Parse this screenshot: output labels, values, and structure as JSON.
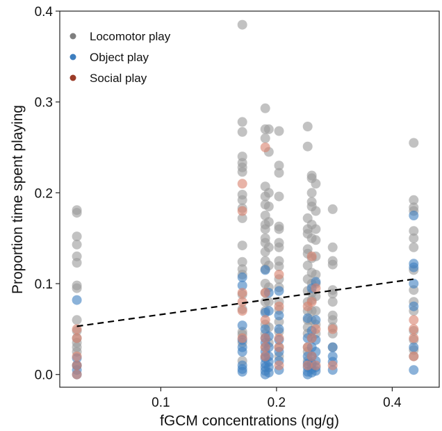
{
  "chart_data": {
    "type": "scatter",
    "title": "",
    "xlabel": "fGCM concentrations (ng/g)",
    "ylabel": "Proportion time spent playing",
    "x_scale": "log",
    "xlim": [
      0.0546,
      0.53
    ],
    "ylim": [
      -0.014,
      0.4
    ],
    "x_ticks": [
      {
        "value": 0.1,
        "label": "0.1"
      },
      {
        "value": 0.2,
        "label": "0.2"
      },
      {
        "value": 0.4,
        "label": "0.4"
      }
    ],
    "y_ticks": [
      {
        "value": 0.0,
        "label": "0.0"
      },
      {
        "value": 0.1,
        "label": "0.1"
      },
      {
        "value": 0.2,
        "label": "0.2"
      },
      {
        "value": 0.3,
        "label": "0.3"
      },
      {
        "value": 0.4,
        "label": "0.4"
      }
    ],
    "grid": false,
    "legend": {
      "placement": "top-left",
      "entries": [
        {
          "name": "Locomotor play",
          "color": "#7f7f7f"
        },
        {
          "name": "Object play",
          "color": "#3d7ebf"
        },
        {
          "name": "Social play",
          "color": "#9b3b28"
        }
      ]
    },
    "series": [
      {
        "name": "Locomotor play",
        "color": "#9a9a9a",
        "points": [
          [
            0.0605,
            0.181
          ],
          [
            0.0605,
            0.178
          ],
          [
            0.0605,
            0.152
          ],
          [
            0.0605,
            0.143
          ],
          [
            0.0605,
            0.13
          ],
          [
            0.0605,
            0.123
          ],
          [
            0.0605,
            0.098
          ],
          [
            0.0605,
            0.095
          ],
          [
            0.0605,
            0.06
          ],
          [
            0.0605,
            0.048
          ],
          [
            0.0605,
            0.04
          ],
          [
            0.0605,
            0.035
          ],
          [
            0.0605,
            0.03
          ],
          [
            0.0605,
            0.025
          ],
          [
            0.0605,
            0.01
          ],
          [
            0.163,
            0.385
          ],
          [
            0.163,
            0.278
          ],
          [
            0.163,
            0.267
          ],
          [
            0.163,
            0.24
          ],
          [
            0.163,
            0.233
          ],
          [
            0.163,
            0.228
          ],
          [
            0.163,
            0.223
          ],
          [
            0.163,
            0.198
          ],
          [
            0.163,
            0.192
          ],
          [
            0.163,
            0.183
          ],
          [
            0.163,
            0.172
          ],
          [
            0.163,
            0.142
          ],
          [
            0.163,
            0.124
          ],
          [
            0.163,
            0.116
          ],
          [
            0.163,
            0.11
          ],
          [
            0.163,
            0.088
          ],
          [
            0.163,
            0.072
          ],
          [
            0.163,
            0.047
          ],
          [
            0.163,
            0.044
          ],
          [
            0.163,
            0.035
          ],
          [
            0.163,
            0.015
          ],
          [
            0.187,
            0.293
          ],
          [
            0.187,
            0.27
          ],
          [
            0.187,
            0.26
          ],
          [
            0.187,
            0.207
          ],
          [
            0.187,
            0.196
          ],
          [
            0.187,
            0.187
          ],
          [
            0.187,
            0.175
          ],
          [
            0.187,
            0.165
          ],
          [
            0.187,
            0.16
          ],
          [
            0.187,
            0.15
          ],
          [
            0.187,
            0.145
          ],
          [
            0.187,
            0.135
          ],
          [
            0.187,
            0.125
          ],
          [
            0.187,
            0.116
          ],
          [
            0.187,
            0.1
          ],
          [
            0.187,
            0.09
          ],
          [
            0.187,
            0.08
          ],
          [
            0.187,
            0.07
          ],
          [
            0.187,
            0.055
          ],
          [
            0.187,
            0.045
          ],
          [
            0.187,
            0.03
          ],
          [
            0.187,
            0.02
          ],
          [
            0.191,
            0.27
          ],
          [
            0.191,
            0.245
          ],
          [
            0.191,
            0.2
          ],
          [
            0.191,
            0.185
          ],
          [
            0.191,
            0.168
          ],
          [
            0.191,
            0.14
          ],
          [
            0.191,
            0.12
          ],
          [
            0.191,
            0.096
          ],
          [
            0.191,
            0.08
          ],
          [
            0.191,
            0.052
          ],
          [
            0.191,
            0.035
          ],
          [
            0.203,
            0.268
          ],
          [
            0.203,
            0.23
          ],
          [
            0.203,
            0.222
          ],
          [
            0.203,
            0.196
          ],
          [
            0.203,
            0.163
          ],
          [
            0.203,
            0.16
          ],
          [
            0.203,
            0.145
          ],
          [
            0.203,
            0.14
          ],
          [
            0.203,
            0.125
          ],
          [
            0.203,
            0.119
          ],
          [
            0.203,
            0.105
          ],
          [
            0.203,
            0.096
          ],
          [
            0.203,
            0.08
          ],
          [
            0.203,
            0.071
          ],
          [
            0.203,
            0.058
          ],
          [
            0.203,
            0.047
          ],
          [
            0.203,
            0.03
          ],
          [
            0.203,
            0.02
          ],
          [
            0.241,
            0.273
          ],
          [
            0.241,
            0.251
          ],
          [
            0.241,
            0.172
          ],
          [
            0.241,
            0.16
          ],
          [
            0.241,
            0.155
          ],
          [
            0.241,
            0.138
          ],
          [
            0.241,
            0.133
          ],
          [
            0.241,
            0.12
          ],
          [
            0.241,
            0.105
          ],
          [
            0.241,
            0.092
          ],
          [
            0.241,
            0.08
          ],
          [
            0.241,
            0.07
          ],
          [
            0.241,
            0.06
          ],
          [
            0.241,
            0.052
          ],
          [
            0.241,
            0.045
          ],
          [
            0.241,
            0.03
          ],
          [
            0.241,
            0.025
          ],
          [
            0.241,
            0.015
          ],
          [
            0.247,
            0.219
          ],
          [
            0.247,
            0.216
          ],
          [
            0.247,
            0.2
          ],
          [
            0.247,
            0.19
          ],
          [
            0.247,
            0.185
          ],
          [
            0.247,
            0.165
          ],
          [
            0.247,
            0.15
          ],
          [
            0.247,
            0.128
          ],
          [
            0.247,
            0.112
          ],
          [
            0.247,
            0.1
          ],
          [
            0.247,
            0.09
          ],
          [
            0.247,
            0.082
          ],
          [
            0.247,
            0.07
          ],
          [
            0.247,
            0.06
          ],
          [
            0.247,
            0.04
          ],
          [
            0.253,
            0.21
          ],
          [
            0.253,
            0.18
          ],
          [
            0.253,
            0.16
          ],
          [
            0.253,
            0.148
          ],
          [
            0.253,
            0.13
          ],
          [
            0.253,
            0.11
          ],
          [
            0.253,
            0.1
          ],
          [
            0.253,
            0.086
          ],
          [
            0.253,
            0.07
          ],
          [
            0.253,
            0.055
          ],
          [
            0.253,
            0.045
          ],
          [
            0.28,
            0.182
          ],
          [
            0.28,
            0.14
          ],
          [
            0.28,
            0.125
          ],
          [
            0.28,
            0.121
          ],
          [
            0.28,
            0.093
          ],
          [
            0.28,
            0.089
          ],
          [
            0.28,
            0.08
          ],
          [
            0.28,
            0.065
          ],
          [
            0.28,
            0.06
          ],
          [
            0.28,
            0.052
          ],
          [
            0.28,
            0.045
          ],
          [
            0.28,
            0.03
          ],
          [
            0.455,
            0.255
          ],
          [
            0.455,
            0.192
          ],
          [
            0.455,
            0.184
          ],
          [
            0.455,
            0.18
          ],
          [
            0.455,
            0.158
          ],
          [
            0.455,
            0.15
          ],
          [
            0.455,
            0.14
          ],
          [
            0.455,
            0.115
          ],
          [
            0.455,
            0.093
          ],
          [
            0.455,
            0.08
          ],
          [
            0.455,
            0.07
          ],
          [
            0.455,
            0.048
          ],
          [
            0.455,
            0.038
          ],
          [
            0.455,
            0.027
          ],
          [
            0.455,
            0.02
          ]
        ]
      },
      {
        "name": "Object play",
        "color": "#3d7ebf",
        "points": [
          [
            0.0605,
            0.082
          ],
          [
            0.0605,
            0.018
          ],
          [
            0.0605,
            0.01
          ],
          [
            0.0605,
            0.005
          ],
          [
            0.0605,
            0.0
          ],
          [
            0.163,
            0.107
          ],
          [
            0.163,
            0.098
          ],
          [
            0.163,
            0.054
          ],
          [
            0.163,
            0.038
          ],
          [
            0.163,
            0.03
          ],
          [
            0.163,
            0.025
          ],
          [
            0.163,
            0.01
          ],
          [
            0.163,
            0.006
          ],
          [
            0.163,
            0.003
          ],
          [
            0.187,
            0.115
          ],
          [
            0.187,
            0.068
          ],
          [
            0.187,
            0.05
          ],
          [
            0.187,
            0.04
          ],
          [
            0.187,
            0.035
          ],
          [
            0.187,
            0.025
          ],
          [
            0.187,
            0.018
          ],
          [
            0.187,
            0.012
          ],
          [
            0.187,
            0.008
          ],
          [
            0.187,
            0.004
          ],
          [
            0.187,
            0.0
          ],
          [
            0.191,
            0.09
          ],
          [
            0.191,
            0.07
          ],
          [
            0.191,
            0.042
          ],
          [
            0.191,
            0.03
          ],
          [
            0.191,
            0.02
          ],
          [
            0.191,
            0.014
          ],
          [
            0.191,
            0.008
          ],
          [
            0.191,
            0.002
          ],
          [
            0.203,
            0.092
          ],
          [
            0.203,
            0.065
          ],
          [
            0.203,
            0.05
          ],
          [
            0.203,
            0.038
          ],
          [
            0.203,
            0.025
          ],
          [
            0.203,
            0.015
          ],
          [
            0.203,
            0.005
          ],
          [
            0.241,
            0.062
          ],
          [
            0.241,
            0.04
          ],
          [
            0.241,
            0.02
          ],
          [
            0.241,
            0.012
          ],
          [
            0.241,
            0.008
          ],
          [
            0.241,
            0.003
          ],
          [
            0.241,
            0.0
          ],
          [
            0.247,
            0.095
          ],
          [
            0.247,
            0.048
          ],
          [
            0.247,
            0.03
          ],
          [
            0.247,
            0.02
          ],
          [
            0.247,
            0.012
          ],
          [
            0.247,
            0.006
          ],
          [
            0.247,
            0.002
          ],
          [
            0.253,
            0.102
          ],
          [
            0.253,
            0.06
          ],
          [
            0.253,
            0.038
          ],
          [
            0.253,
            0.025
          ],
          [
            0.253,
            0.015
          ],
          [
            0.253,
            0.008
          ],
          [
            0.253,
            0.004
          ],
          [
            0.28,
            0.03
          ],
          [
            0.28,
            0.02
          ],
          [
            0.28,
            0.014
          ],
          [
            0.28,
            0.005
          ],
          [
            0.455,
            0.175
          ],
          [
            0.455,
            0.122
          ],
          [
            0.455,
            0.118
          ],
          [
            0.455,
            0.1
          ],
          [
            0.455,
            0.075
          ],
          [
            0.455,
            0.03
          ],
          [
            0.455,
            0.005
          ]
        ]
      },
      {
        "name": "Social play",
        "color": "#d9806c",
        "points": [
          [
            0.0605,
            0.05
          ],
          [
            0.0605,
            0.04
          ],
          [
            0.0605,
            0.02
          ],
          [
            0.0605,
            0.01
          ],
          [
            0.0605,
            0.0
          ],
          [
            0.163,
            0.21
          ],
          [
            0.163,
            0.18
          ],
          [
            0.163,
            0.09
          ],
          [
            0.163,
            0.08
          ],
          [
            0.163,
            0.07
          ],
          [
            0.163,
            0.04
          ],
          [
            0.187,
            0.25
          ],
          [
            0.187,
            0.09
          ],
          [
            0.187,
            0.06
          ],
          [
            0.187,
            0.04
          ],
          [
            0.187,
            0.03
          ],
          [
            0.187,
            0.02
          ],
          [
            0.203,
            0.11
          ],
          [
            0.203,
            0.075
          ],
          [
            0.203,
            0.04
          ],
          [
            0.203,
            0.03
          ],
          [
            0.203,
            0.01
          ],
          [
            0.241,
            0.075
          ],
          [
            0.241,
            0.03
          ],
          [
            0.241,
            0.01
          ],
          [
            0.247,
            0.13
          ],
          [
            0.247,
            0.08
          ],
          [
            0.247,
            0.04
          ],
          [
            0.247,
            0.02
          ],
          [
            0.253,
            0.095
          ],
          [
            0.253,
            0.05
          ],
          [
            0.253,
            0.01
          ],
          [
            0.28,
            0.05
          ],
          [
            0.28,
            0.01
          ],
          [
            0.455,
            0.06
          ],
          [
            0.455,
            0.05
          ],
          [
            0.455,
            0.04
          ],
          [
            0.455,
            0.02
          ]
        ]
      }
    ],
    "trend_line": {
      "style": "dashed",
      "color": "#000000",
      "x": [
        0.0605,
        0.455
      ],
      "y": [
        0.053,
        0.105
      ]
    }
  }
}
